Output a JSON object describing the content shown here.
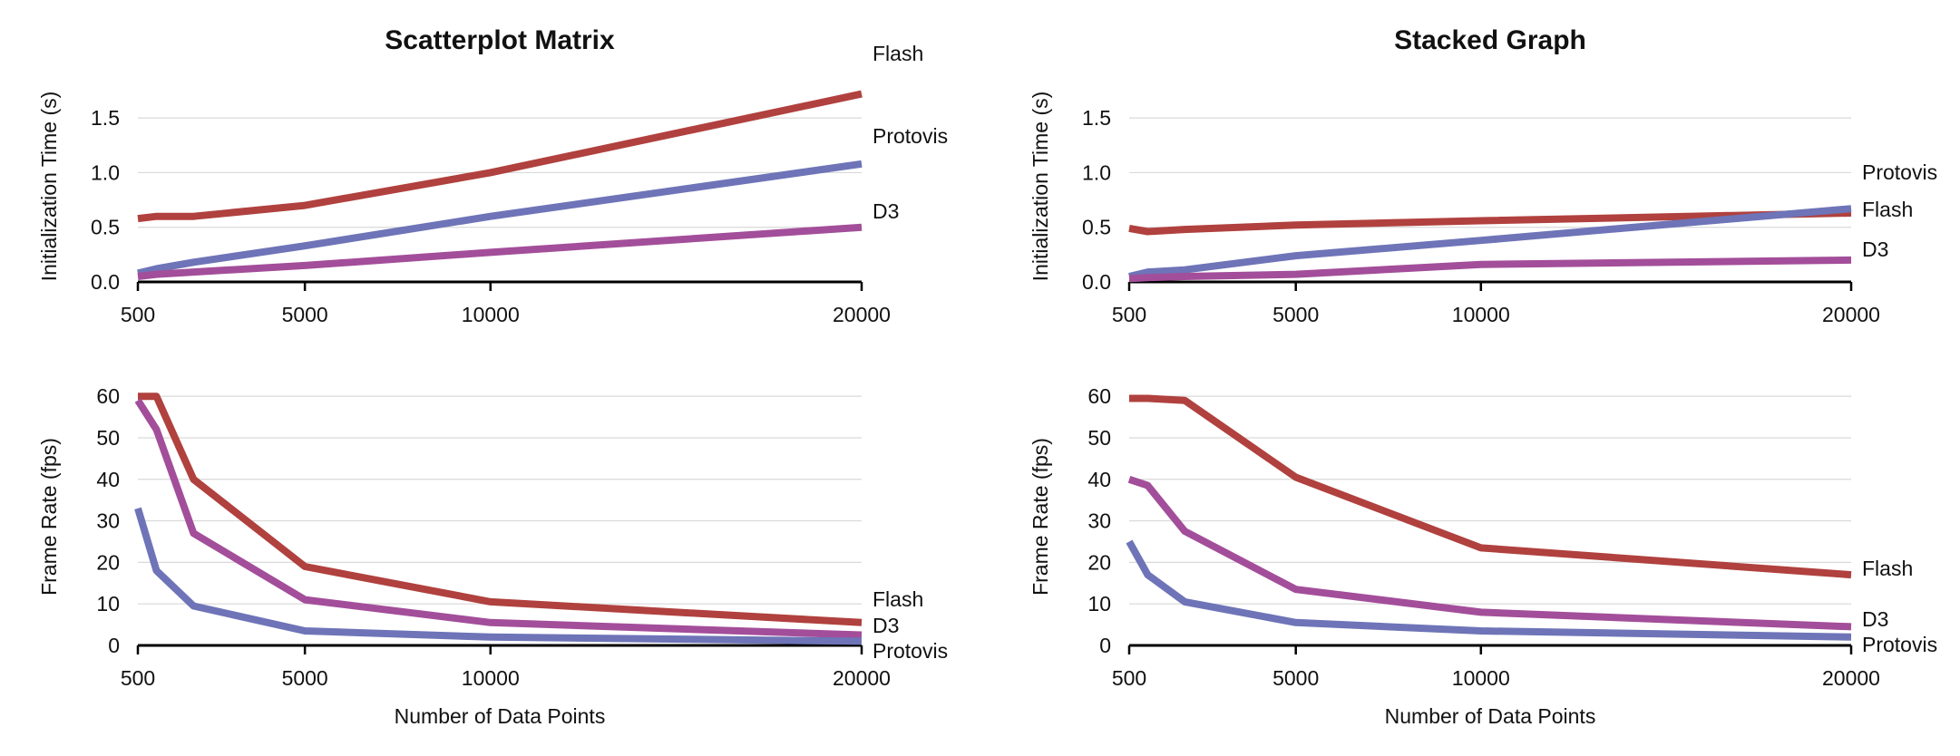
{
  "colors": {
    "Flash": "#b0413e",
    "Protovis": "#6e74b7",
    "D3": "#a34e9a"
  },
  "chart_data": [
    {
      "id": "scatter-init",
      "type": "line",
      "title": "Scatterplot Matrix",
      "xlabel": "",
      "ylabel": "Initialization Time (s)",
      "x": [
        500,
        1000,
        2000,
        5000,
        10000,
        20000
      ],
      "xticks": [
        500,
        5000,
        10000,
        20000
      ],
      "xtick_labels": [
        "500",
        "5000",
        "10000",
        "20000"
      ],
      "ylim": [
        0,
        1.75
      ],
      "yticks": [
        0,
        0.5,
        1.0,
        1.5
      ],
      "ytick_labels": [
        "0.0",
        "0.5",
        "1.0",
        "1.5"
      ],
      "grid": true,
      "series": [
        {
          "name": "Flash",
          "label": "Flash",
          "values": [
            0.58,
            0.6,
            0.6,
            0.7,
            1.0,
            1.72
          ]
        },
        {
          "name": "Protovis",
          "label": "Protovis",
          "values": [
            0.08,
            0.12,
            0.18,
            0.33,
            0.6,
            1.08
          ]
        },
        {
          "name": "D3",
          "label": "D3",
          "values": [
            0.05,
            0.07,
            0.09,
            0.15,
            0.27,
            0.5
          ]
        }
      ]
    },
    {
      "id": "stacked-init",
      "type": "line",
      "title": "Stacked Graph",
      "xlabel": "",
      "ylabel": "Initialization Time (s)",
      "x": [
        500,
        1000,
        2000,
        5000,
        10000,
        20000
      ],
      "xticks": [
        500,
        5000,
        10000,
        20000
      ],
      "xtick_labels": [
        "500",
        "5000",
        "10000",
        "20000"
      ],
      "ylim": [
        0,
        1.75
      ],
      "yticks": [
        0,
        0.5,
        1.0,
        1.5
      ],
      "ytick_labels": [
        "0.0",
        "0.5",
        "1.0",
        "1.5"
      ],
      "grid": true,
      "series": [
        {
          "name": "Flash",
          "label": "Flash",
          "values": [
            0.49,
            0.46,
            0.48,
            0.52,
            0.56,
            0.63
          ]
        },
        {
          "name": "Protovis",
          "label": "Protovis",
          "values": [
            0.05,
            0.09,
            0.11,
            0.24,
            0.38,
            0.67
          ]
        },
        {
          "name": "D3",
          "label": "D3",
          "values": [
            0.03,
            0.04,
            0.05,
            0.07,
            0.16,
            0.2
          ]
        }
      ]
    },
    {
      "id": "scatter-fps",
      "type": "line",
      "title": "",
      "xlabel": "Number of Data Points",
      "ylabel": "Frame Rate (fps)",
      "x": [
        500,
        1000,
        2000,
        5000,
        10000,
        20000
      ],
      "xticks": [
        500,
        5000,
        10000,
        20000
      ],
      "xtick_labels": [
        "500",
        "5000",
        "10000",
        "20000"
      ],
      "ylim": [
        0,
        62
      ],
      "yticks": [
        0,
        10,
        20,
        30,
        40,
        50,
        60
      ],
      "ytick_labels": [
        "0",
        "10",
        "20",
        "30",
        "40",
        "50",
        "60"
      ],
      "grid": true,
      "series": [
        {
          "name": "Flash",
          "label": "Flash",
          "values": [
            60,
            60,
            40,
            19,
            10.5,
            5.5
          ]
        },
        {
          "name": "D3",
          "label": "D3",
          "values": [
            59,
            52,
            27,
            11,
            5.5,
            2.5
          ]
        },
        {
          "name": "Protovis",
          "label": "Protovis",
          "values": [
            33,
            18,
            9.5,
            3.5,
            2,
            1
          ]
        }
      ]
    },
    {
      "id": "stacked-fps",
      "type": "line",
      "title": "",
      "xlabel": "Number of Data Points",
      "ylabel": "Frame Rate (fps)",
      "x": [
        500,
        1000,
        2000,
        5000,
        10000,
        20000
      ],
      "xticks": [
        500,
        5000,
        10000,
        20000
      ],
      "xtick_labels": [
        "500",
        "5000",
        "10000",
        "20000"
      ],
      "ylim": [
        0,
        62
      ],
      "yticks": [
        0,
        10,
        20,
        30,
        40,
        50,
        60
      ],
      "ytick_labels": [
        "0",
        "10",
        "20",
        "30",
        "40",
        "50",
        "60"
      ],
      "grid": true,
      "series": [
        {
          "name": "Flash",
          "label": "Flash",
          "values": [
            59.5,
            59.5,
            59,
            40.5,
            23.5,
            17
          ]
        },
        {
          "name": "D3",
          "label": "D3",
          "values": [
            40,
            38.5,
            27.5,
            13.5,
            8,
            4.5
          ]
        },
        {
          "name": "Protovis",
          "label": "Protovis",
          "values": [
            25,
            17,
            10.5,
            5.5,
            3.5,
            2
          ]
        }
      ]
    }
  ]
}
